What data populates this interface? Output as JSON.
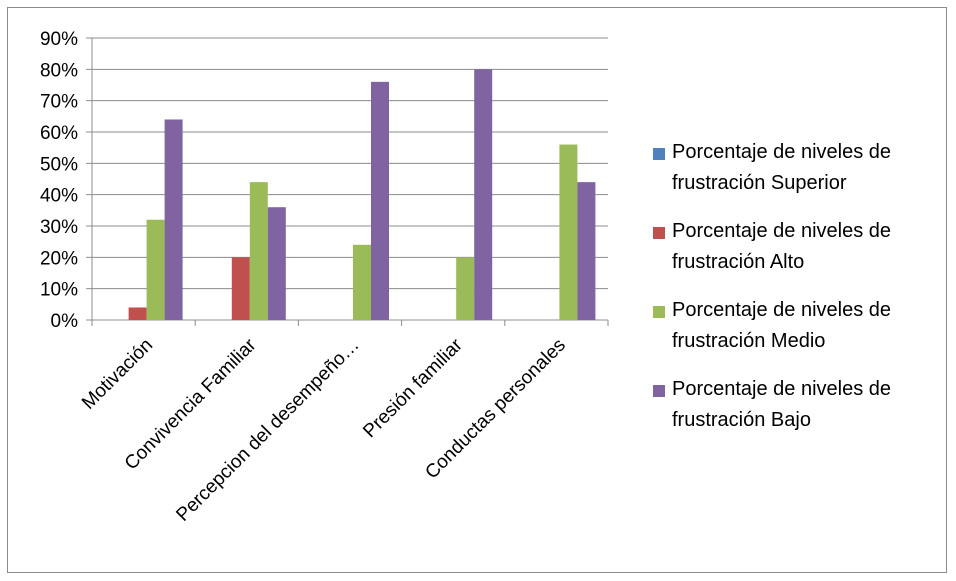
{
  "chart_data": {
    "type": "bar",
    "title": "",
    "xlabel": "",
    "ylabel": "",
    "categories": [
      "Motivación",
      "Convivencia Familiar",
      "Percepcion del desempeño…",
      "Presión familiar",
      "Conductas personales"
    ],
    "series": [
      {
        "name": "Porcentaje de niveles de frustración Superior",
        "color": "#4f81bd",
        "values": [
          0,
          0,
          0,
          0,
          0
        ]
      },
      {
        "name": "Porcentaje de niveles de frustración Alto",
        "color": "#c0504d",
        "values": [
          4,
          20,
          0,
          0,
          0
        ]
      },
      {
        "name": "Porcentaje de niveles de frustración Medio",
        "color": "#9bbb59",
        "values": [
          32,
          44,
          24,
          20,
          56
        ]
      },
      {
        "name": "Porcentaje de niveles de frustración Bajo",
        "color": "#8064a2",
        "values": [
          64,
          36,
          76,
          80,
          44
        ]
      }
    ],
    "legend": [
      {
        "line1": "Porcentaje de niveles de",
        "line2": "frustración Superior"
      },
      {
        "line1": "Porcentaje de niveles de",
        "line2": "frustración Alto"
      },
      {
        "line1": "Porcentaje de niveles de",
        "line2": "frustración Medio"
      },
      {
        "line1": "Porcentaje de niveles de",
        "line2": "frustración Bajo"
      }
    ],
    "yticks": [
      "0%",
      "10%",
      "20%",
      "30%",
      "40%",
      "50%",
      "60%",
      "70%",
      "80%",
      "90%"
    ],
    "ylim": [
      0,
      90
    ],
    "grid": true,
    "legend_position": "right"
  }
}
